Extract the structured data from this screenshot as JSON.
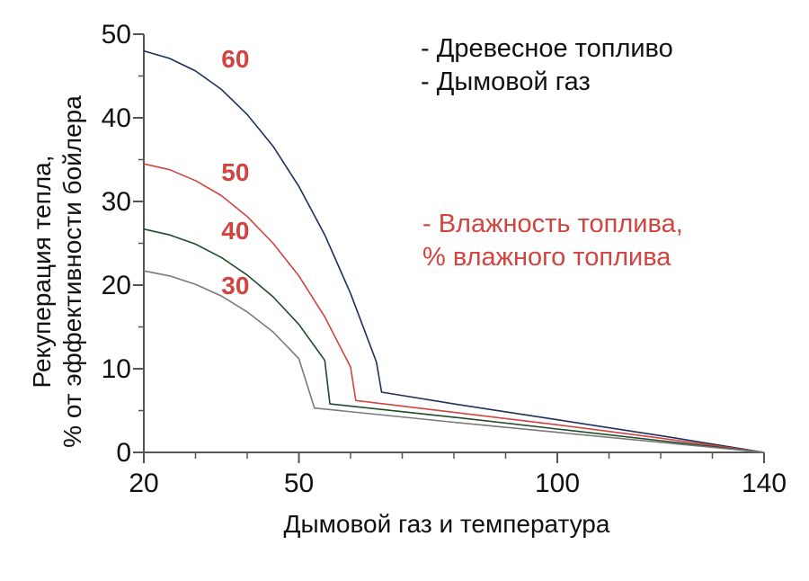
{
  "chart_data": {
    "type": "line",
    "title": "",
    "xlabel": "Дымовой газ и температура",
    "ylabel_lines": [
      "Рекуперация тепла,",
      "% от эффективности бойлера"
    ],
    "xlim": [
      20,
      140
    ],
    "ylim": [
      0,
      50
    ],
    "x_ticks": [
      20,
      50,
      100,
      140
    ],
    "x_minor_ticks": [
      30,
      40,
      60,
      70,
      80,
      90,
      110,
      120,
      130
    ],
    "y_ticks": [
      0,
      10,
      20,
      30,
      40,
      50
    ],
    "y_minor_ticks": [
      5,
      15,
      25,
      35,
      45
    ],
    "grid": false,
    "legend": {
      "placement": "top-right",
      "lines": [
        {
          "text": "- Древесное топливо",
          "color": "#111111"
        },
        {
          "text": "- Дымовой газ",
          "color": "#111111"
        }
      ],
      "moisture_lines": [
        {
          "text": "- Влажность топлива,",
          "color": "#d2443f"
        },
        {
          "text": "% влажного топлива",
          "color": "#d2443f"
        }
      ]
    },
    "series": [
      {
        "name": "60",
        "color": "#1f2f5a",
        "x": [
          20,
          25,
          30,
          35,
          40,
          45,
          50,
          55,
          60,
          65,
          66,
          80,
          100,
          120,
          140
        ],
        "y": [
          48.0,
          47.1,
          45.6,
          43.4,
          40.4,
          36.6,
          31.8,
          26.0,
          19.0,
          10.8,
          7.2,
          5.8,
          3.9,
          2.0,
          0
        ]
      },
      {
        "name": "50",
        "color": "#d2443f",
        "x": [
          20,
          25,
          30,
          35,
          40,
          45,
          50,
          55,
          60,
          61,
          80,
          100,
          120,
          140
        ],
        "y": [
          34.5,
          33.8,
          32.5,
          30.7,
          28.2,
          25.0,
          21.1,
          16.2,
          10.2,
          6.2,
          4.8,
          3.3,
          1.7,
          0
        ]
      },
      {
        "name": "40",
        "color": "#1f4a2a",
        "x": [
          20,
          25,
          30,
          35,
          40,
          45,
          50,
          55,
          56,
          80,
          100,
          120,
          140
        ],
        "y": [
          26.7,
          26.0,
          24.9,
          23.3,
          21.2,
          18.6,
          15.3,
          11.0,
          5.8,
          4.2,
          2.8,
          1.4,
          0
        ]
      },
      {
        "name": "30",
        "color": "#7a7a7a",
        "x": [
          20,
          25,
          30,
          35,
          40,
          45,
          50,
          53,
          80,
          100,
          120,
          140
        ],
        "y": [
          21.7,
          21.1,
          20.1,
          18.7,
          16.8,
          14.4,
          11.2,
          5.3,
          3.6,
          2.4,
          1.2,
          0
        ]
      }
    ],
    "series_labels": [
      {
        "text": "60",
        "x": 35,
        "y": 46
      },
      {
        "text": "50",
        "x": 35,
        "y": 32.5
      },
      {
        "text": "40",
        "x": 35,
        "y": 25.5
      },
      {
        "text": "30",
        "x": 35,
        "y": 18.9
      }
    ]
  }
}
